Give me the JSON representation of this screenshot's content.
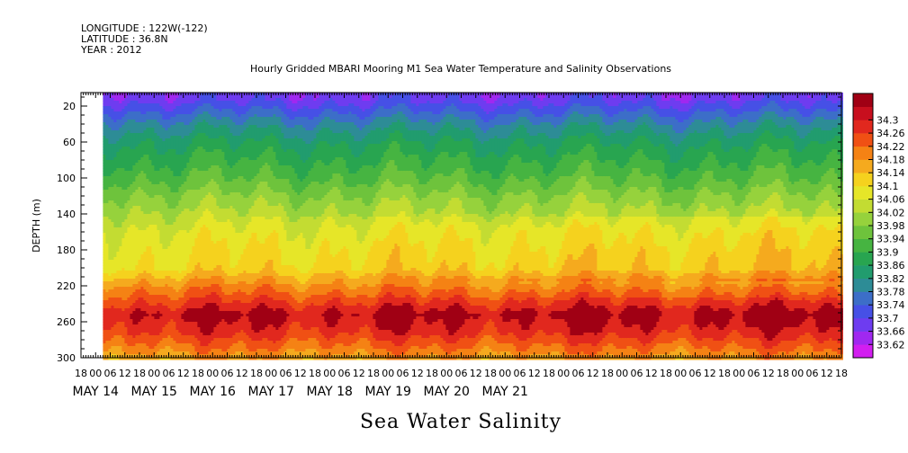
{
  "header": {
    "longitude": "LONGITUDE : 122W(-122)",
    "latitude": "LATITUDE : 36.8N",
    "year": "YEAR : 2012"
  },
  "chart_data": {
    "type": "heatmap",
    "title": "Hourly Gridded MBARI Mooring M1 Sea Water Temperature and Salinity Observations",
    "xlabel": "Sea Water Salinity",
    "ylabel": "DEPTH (m)",
    "ylim": [
      300,
      5
    ],
    "yticks": [
      20,
      60,
      100,
      140,
      180,
      220,
      260,
      300
    ],
    "x_hour_ticks": [
      "18",
      "00",
      "06",
      "12",
      "18",
      "00",
      "06",
      "12",
      "18",
      "00",
      "06",
      "12",
      "18",
      "00",
      "06",
      "12",
      "18",
      "00",
      "06",
      "12",
      "18",
      "00",
      "06",
      "12",
      "18",
      "00",
      "06",
      "12",
      "18",
      "00",
      "06",
      "12",
      "18",
      "00",
      "06",
      "12",
      "18",
      "00",
      "06",
      "12",
      "18",
      "00",
      "06",
      "12",
      "18",
      "00",
      "06",
      "12",
      "18",
      "00",
      "06",
      "12",
      "18"
    ],
    "x_date_labels": [
      "MAY 14",
      "MAY 15",
      "MAY 16",
      "MAY 17",
      "MAY 18",
      "MAY 19",
      "MAY 20",
      "MAY 21"
    ],
    "data_start": "2012-05-15 03:00",
    "colorbar": {
      "levels": [
        33.62,
        33.66,
        33.7,
        33.74,
        33.78,
        33.82,
        33.86,
        33.9,
        33.94,
        33.98,
        34.02,
        34.06,
        34.1,
        34.14,
        34.18,
        34.22,
        34.26,
        34.3
      ],
      "colors": [
        "#d21ef0",
        "#a028f0",
        "#6e3cf0",
        "#4650e6",
        "#3c6ec8",
        "#2d8c96",
        "#219c6e",
        "#28a550",
        "#46b441",
        "#6ec33c",
        "#96d23c",
        "#c3dc32",
        "#e6e628",
        "#f5d21e",
        "#f5aa1e",
        "#f58214",
        "#f05014",
        "#e1281e",
        "#c80f1e",
        "#a00014"
      ]
    },
    "depth_profile": [
      {
        "depth": 10,
        "salinity": 33.68
      },
      {
        "depth": 20,
        "salinity": 33.72
      },
      {
        "depth": 40,
        "salinity": 33.8
      },
      {
        "depth": 60,
        "salinity": 33.86
      },
      {
        "depth": 80,
        "salinity": 33.9
      },
      {
        "depth": 100,
        "salinity": 33.94
      },
      {
        "depth": 120,
        "salinity": 33.99
      },
      {
        "depth": 140,
        "salinity": 34.03
      },
      {
        "depth": 160,
        "salinity": 34.07
      },
      {
        "depth": 180,
        "salinity": 34.09
      },
      {
        "depth": 200,
        "salinity": 34.11
      },
      {
        "depth": 220,
        "salinity": 34.2
      },
      {
        "depth": 240,
        "salinity": 34.27
      },
      {
        "depth": 250,
        "salinity": 34.31
      },
      {
        "depth": 270,
        "salinity": 34.27
      },
      {
        "depth": 290,
        "salinity": 34.2
      },
      {
        "depth": 300,
        "salinity": 34.16
      }
    ]
  }
}
